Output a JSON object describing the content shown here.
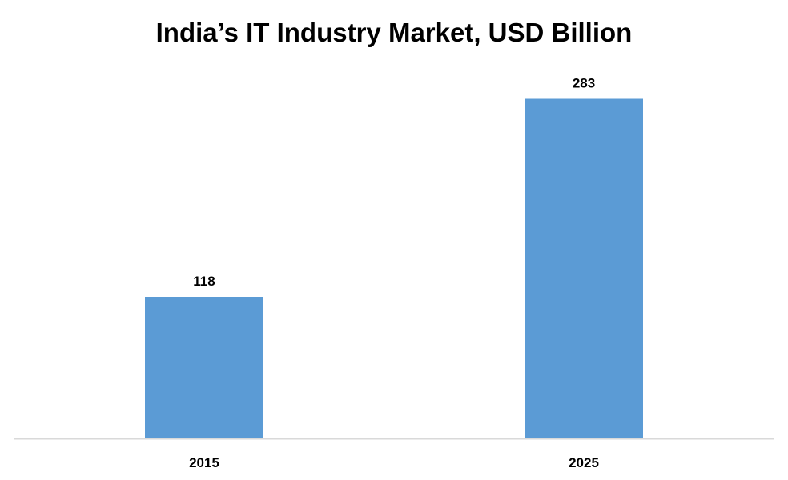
{
  "chart_data": {
    "type": "bar",
    "title": "India’s IT Industry Market, USD Billion",
    "categories": [
      "2015",
      "2025"
    ],
    "values": [
      118,
      283
    ],
    "xlabel": "",
    "ylabel": "",
    "grid": false,
    "bar_color": "#5B9BD5",
    "axis_color": "#D9D9D9"
  }
}
